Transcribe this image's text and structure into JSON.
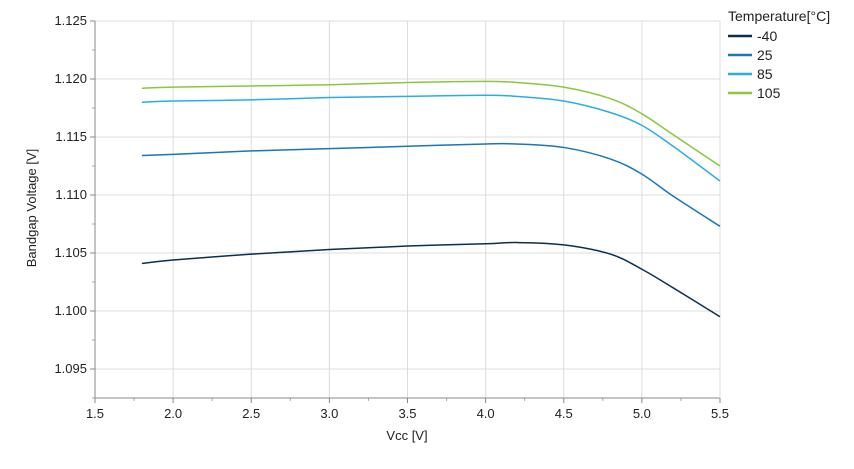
{
  "chart_data": {
    "type": "line",
    "title": "",
    "xlabel": "Vcc [V]",
    "ylabel": "Bandgap Voltage [V]",
    "xlim": [
      1.5,
      5.5
    ],
    "ylim": [
      1.0925,
      1.125
    ],
    "xticks": [
      "1.5",
      "2.0",
      "2.5",
      "3.0",
      "3.5",
      "4.0",
      "4.5",
      "5.0",
      "5.5"
    ],
    "yticks": [
      "1.095",
      "1.100",
      "1.105",
      "1.110",
      "1.115",
      "1.120",
      "1.125"
    ],
    "grid": true,
    "legend_title": "Temperature[°C]",
    "legend_position": "top-right",
    "series": [
      {
        "name": "-40",
        "color": "#0b2f4f",
        "x": [
          1.8,
          2.0,
          2.5,
          3.0,
          3.5,
          4.0,
          4.2,
          4.5,
          4.8,
          5.0,
          5.2,
          5.5
        ],
        "y": [
          1.1041,
          1.1044,
          1.1049,
          1.1053,
          1.1056,
          1.1058,
          1.1059,
          1.1057,
          1.1049,
          1.1036,
          1.102,
          1.0995
        ]
      },
      {
        "name": "25",
        "color": "#1a76b4",
        "x": [
          1.8,
          2.0,
          2.5,
          3.0,
          3.5,
          4.0,
          4.2,
          4.5,
          4.8,
          5.0,
          5.2,
          5.5
        ],
        "y": [
          1.1134,
          1.1135,
          1.1138,
          1.114,
          1.1142,
          1.1144,
          1.1144,
          1.1141,
          1.1131,
          1.1118,
          1.1099,
          1.1073
        ]
      },
      {
        "name": "85",
        "color": "#29aee3",
        "x": [
          1.8,
          2.0,
          2.5,
          3.0,
          3.5,
          4.0,
          4.2,
          4.5,
          4.8,
          5.0,
          5.2,
          5.5
        ],
        "y": [
          1.118,
          1.1181,
          1.1182,
          1.1184,
          1.1185,
          1.1186,
          1.1185,
          1.1181,
          1.1171,
          1.116,
          1.1142,
          1.1112
        ]
      },
      {
        "name": "105",
        "color": "#8cc63f",
        "x": [
          1.8,
          2.0,
          2.5,
          3.0,
          3.5,
          4.0,
          4.2,
          4.5,
          4.8,
          5.0,
          5.2,
          5.5
        ],
        "y": [
          1.1192,
          1.1193,
          1.1194,
          1.1195,
          1.1197,
          1.1198,
          1.1197,
          1.1193,
          1.1183,
          1.117,
          1.1152,
          1.1125
        ]
      }
    ]
  }
}
